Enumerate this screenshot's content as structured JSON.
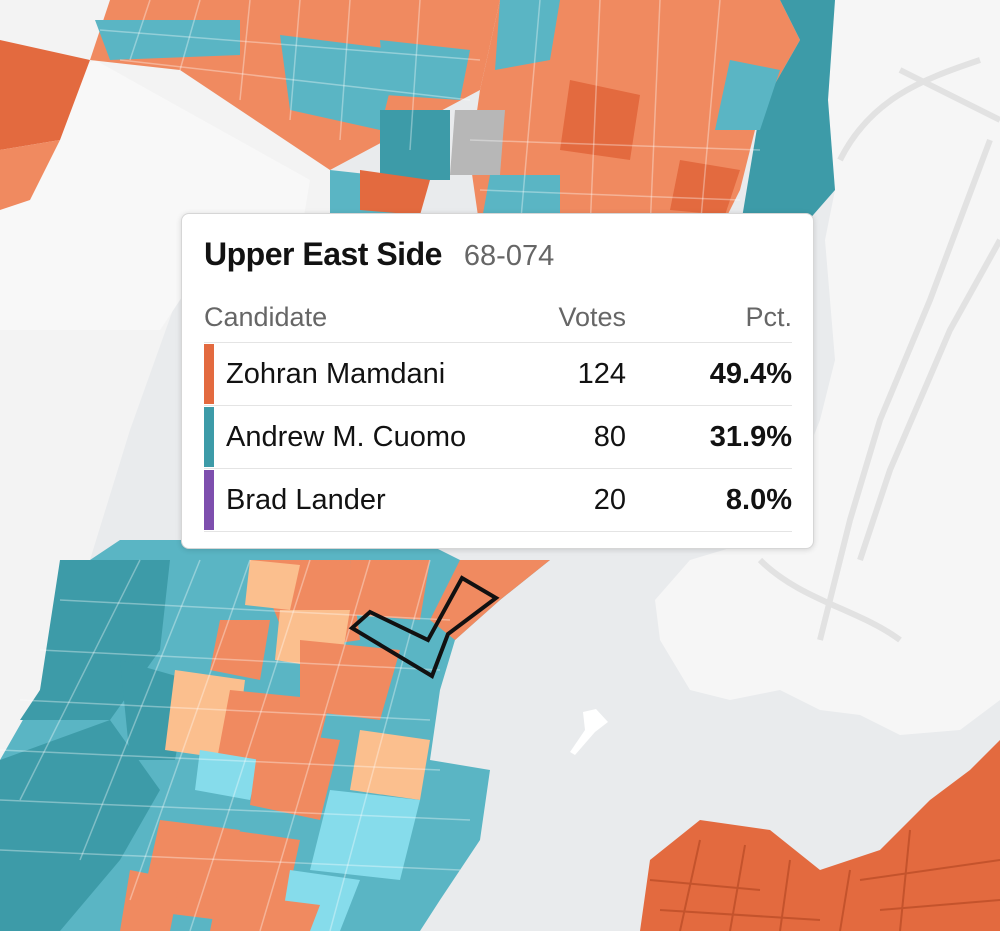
{
  "tooltip": {
    "neighborhood": "Upper East Side",
    "precinct": "68-074",
    "headers": {
      "candidate": "Candidate",
      "votes": "Votes",
      "pct": "Pct."
    },
    "rows": [
      {
        "candidate": "Zohran Mamdani",
        "votes": "124",
        "pct": "49.4%",
        "color": "#e36a3f"
      },
      {
        "candidate": "Andrew M. Cuomo",
        "votes": "80",
        "pct": "31.9%",
        "color": "#3d9ba8"
      },
      {
        "candidate": "Brad Lander",
        "votes": "20",
        "pct": "8.0%",
        "color": "#7e4fae"
      }
    ]
  },
  "map": {
    "colors": {
      "water": "#e9ebed",
      "land": "#f6f6f6",
      "mamdani_strong": "#e36a3f",
      "mamdani": "#f08a60",
      "mamdani_light": "#fbbf8e",
      "cuomo_strong": "#3d9ba8",
      "cuomo": "#5ab5c4",
      "cuomo_light": "#86dceb",
      "no_data": "#b7b7b7"
    }
  }
}
